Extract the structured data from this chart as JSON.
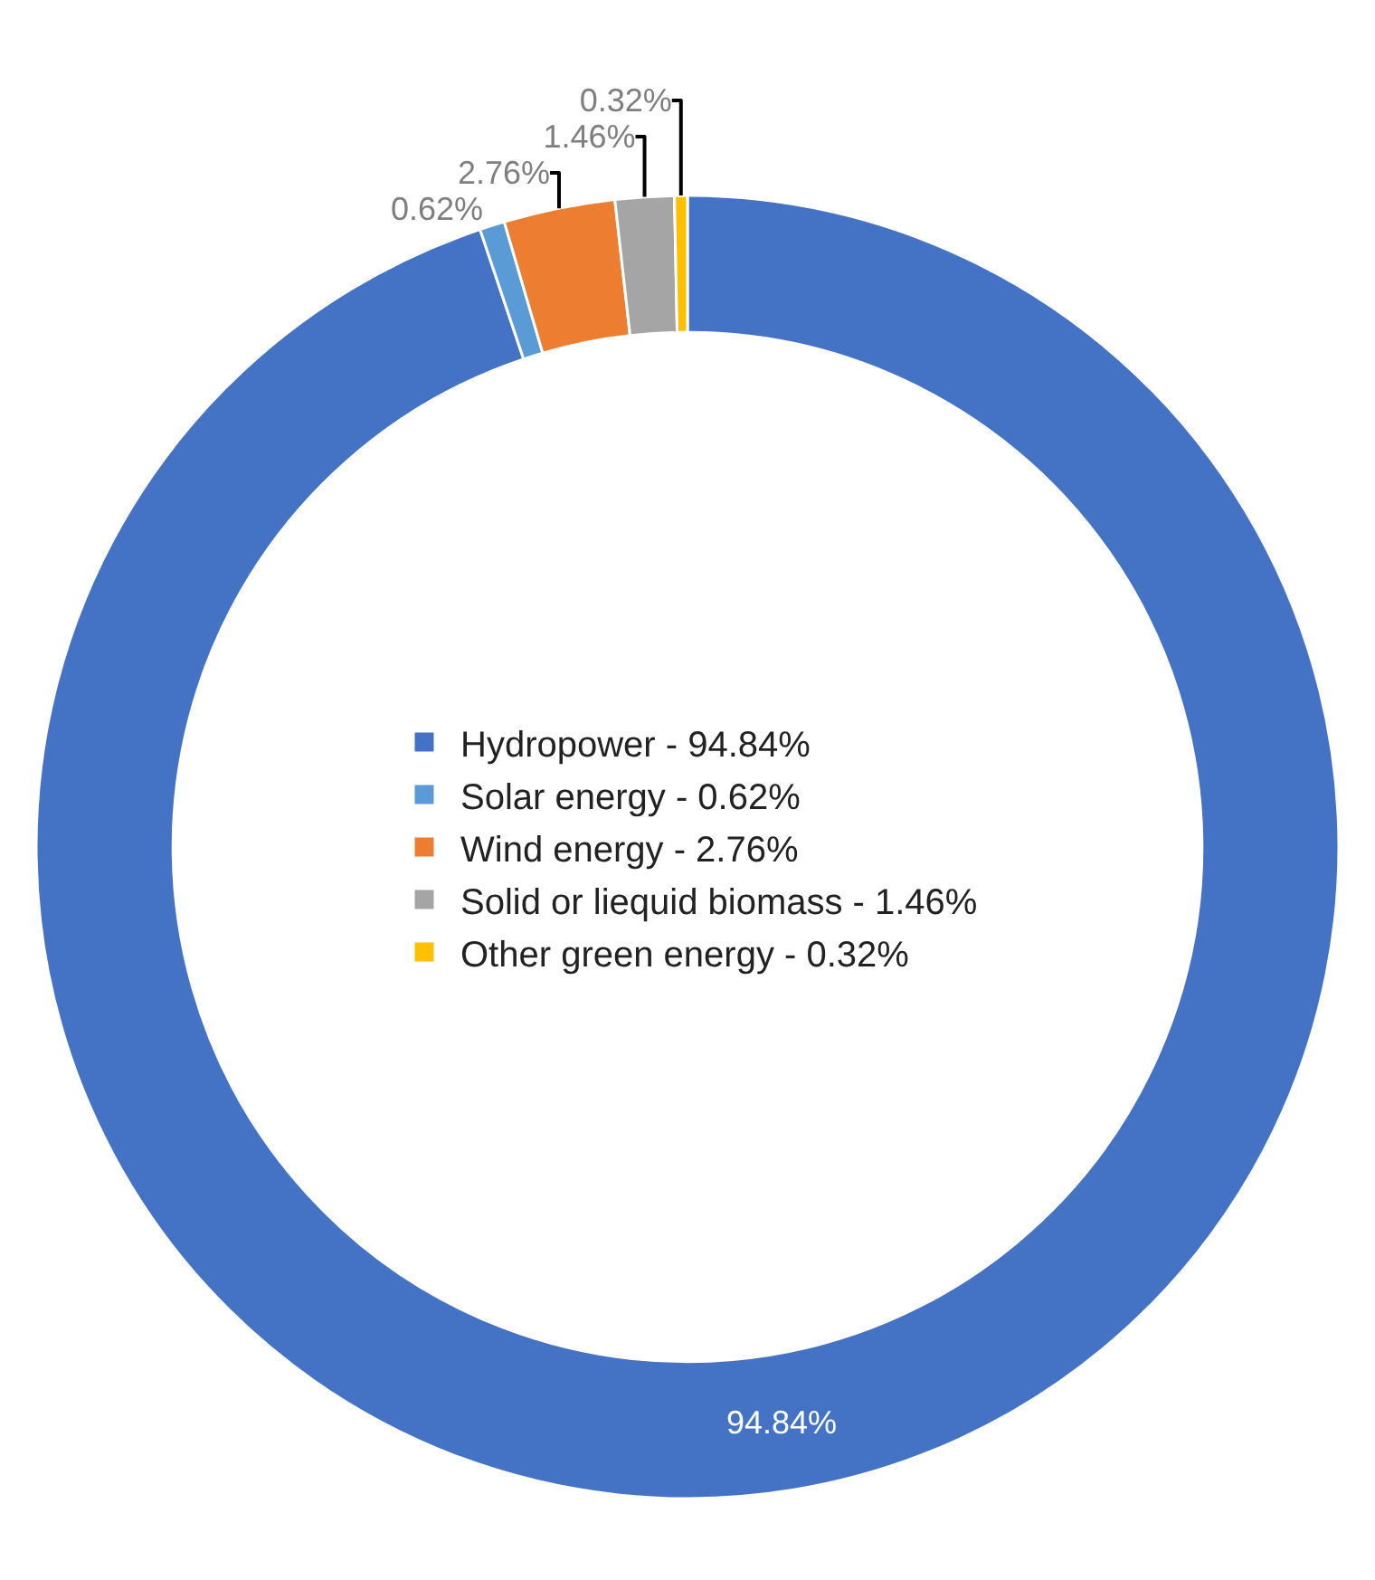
{
  "chart_data": {
    "type": "donut",
    "categories": [
      "Hydropower - 94.84%",
      "Solar energy - 0.62%",
      "Wind energy - 2.76%",
      "Solid or liequid biomass - 1.46%",
      "Other green energy - 0.32%"
    ],
    "values": [
      94.84,
      0.62,
      2.76,
      1.46,
      0.32
    ],
    "value_labels": [
      "94.84%",
      "0.62%",
      "2.76%",
      "1.46%",
      "0.32%"
    ],
    "colors": [
      "#4472c4",
      "#5b9bd5",
      "#ed7d31",
      "#a5a5a5",
      "#ffc000"
    ],
    "legend": "center"
  }
}
